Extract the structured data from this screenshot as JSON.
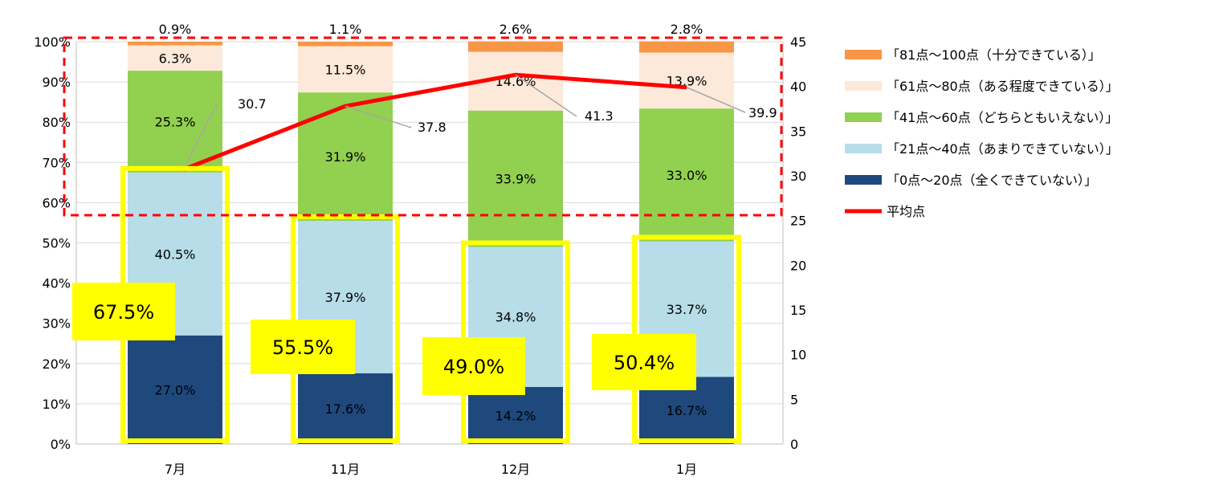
{
  "chart_data": {
    "type": "bar",
    "stacked": true,
    "categories": [
      "7月",
      "11月",
      "12月",
      "1月"
    ],
    "series": [
      {
        "name": "「0点～20点（全くできていない）」",
        "color": "#1f497d",
        "values": [
          27.0,
          17.6,
          14.2,
          16.7
        ],
        "label_color": "#ffffff"
      },
      {
        "name": "「21点～40点（あまりできていない）」",
        "color": "#b7dde8",
        "values": [
          40.5,
          37.9,
          34.8,
          33.7
        ],
        "label_color": "#000000"
      },
      {
        "name": "「41点～60点（どちらともいえない）」",
        "color": "#92d050",
        "values": [
          25.3,
          31.9,
          33.9,
          33.0
        ],
        "label_color": "#000000"
      },
      {
        "name": "「61点～80点（ある程度できている）」",
        "color": "#fde9d9",
        "values": [
          6.3,
          11.5,
          14.6,
          13.9
        ],
        "label_color": "#000000"
      },
      {
        "name": "「81点～100点（十分できている）」",
        "color": "#f79646",
        "values": [
          0.9,
          1.1,
          2.6,
          2.8
        ],
        "label_color": "#000000"
      }
    ],
    "top_labels": [
      "0.9%",
      "1.1%",
      "2.6%",
      "2.8%"
    ],
    "line": {
      "name": "平均点",
      "color": "#ff0000",
      "values": [
        30.7,
        37.8,
        41.3,
        39.9
      ],
      "labels": [
        "30.7",
        "37.8",
        "41.3",
        "39.9"
      ]
    },
    "y_left": {
      "min": 0,
      "max": 100,
      "ticks": [
        "0%",
        "10%",
        "20%",
        "30%",
        "40%",
        "50%",
        "60%",
        "70%",
        "80%",
        "90%",
        "100%"
      ]
    },
    "y_right": {
      "min": 0,
      "max": 45,
      "ticks": [
        "0",
        "5",
        "10",
        "15",
        "20",
        "25",
        "30",
        "35",
        "40",
        "45"
      ]
    },
    "callouts": [
      "67.5%",
      "55.5%",
      "49.0%",
      "50.4%"
    ],
    "highlight_box_color": "#ffff00",
    "dashed_box_color": "#ff0000"
  }
}
